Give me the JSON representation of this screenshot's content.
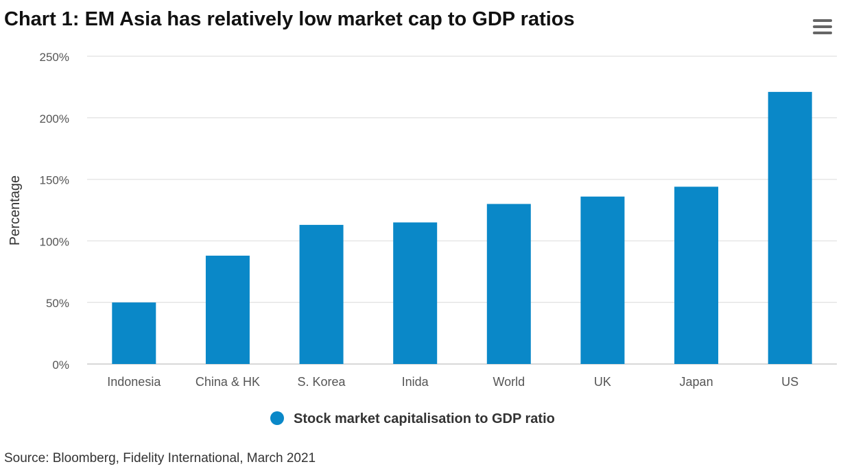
{
  "chart_data": {
    "type": "bar",
    "title": "Chart 1: EM Asia has relatively low market cap to GDP ratios",
    "ylabel": "Percentage",
    "xlabel": "",
    "ylim": [
      0,
      250
    ],
    "yticks": [
      0,
      50,
      100,
      150,
      200,
      250
    ],
    "ytick_labels": [
      "0%",
      "50%",
      "100%",
      "150%",
      "200%",
      "250%"
    ],
    "categories": [
      "Indonesia",
      "China & HK",
      "S. Korea",
      "Inida",
      "World",
      "UK",
      "Japan",
      "US"
    ],
    "series": [
      {
        "name": "Stock market capitalisation to GDP ratio",
        "color": "#0a88c8",
        "values": [
          50,
          88,
          113,
          115,
          130,
          136,
          144,
          221
        ]
      }
    ],
    "grid": true,
    "legend_position": "bottom"
  },
  "source": "Source: Bloomberg, Fidelity International, March 2021",
  "icons": {
    "menu": "hamburger-menu-icon"
  }
}
